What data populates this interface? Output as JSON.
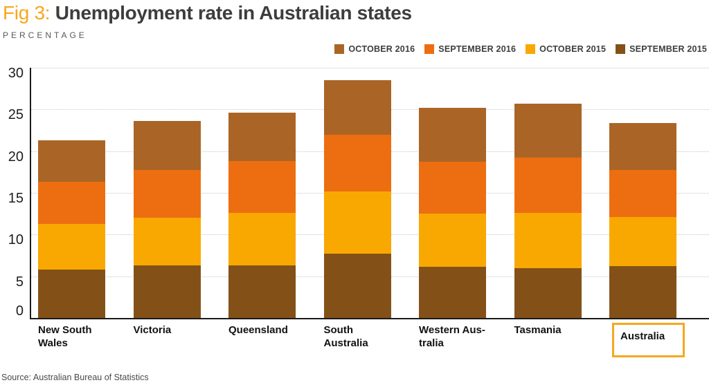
{
  "header": {
    "fig_label": "Fig 3:",
    "title": "Unemployment rate in Australian states",
    "subtitle": "PERCENTAGE"
  },
  "source_note": "Source: Australian Bureau of Statistics",
  "colors": {
    "accent_amber": "#F7A71E",
    "title_text": "#3D3D3C",
    "axis_line": "#1A1A1A",
    "gridline": "#C6C6C6",
    "tick_text": "#1D1D1B",
    "category_text": "#121212",
    "source_text": "#4A4A4A"
  },
  "chart_data": {
    "type": "bar",
    "stacked": true,
    "title": "Unemployment rate in Australian states",
    "ylabel": "PERCENTAGE",
    "xlabel": "",
    "ylim": [
      0,
      30
    ],
    "yticks": [
      0,
      5,
      10,
      15,
      20,
      25,
      30
    ],
    "grid": "horizontal dotted lines at every 5, on",
    "legend_position": "top-right",
    "stack_note": "bars stack bottom-to-top in reverse legend order: SEPTEMBER 2015 at bottom, OCTOBER 2016 on top",
    "categories": [
      "New South\nWales",
      "Victoria",
      "Queensland",
      "South\nAustralia",
      "Western Aus-\ntralia",
      "Tasmania",
      "Australia"
    ],
    "highlighted_category": "Australia",
    "series": [
      {
        "name": "OCTOBER 2016",
        "color": "#AA6526",
        "values": [
          5.0,
          5.9,
          5.8,
          6.5,
          6.5,
          6.5,
          5.7
        ]
      },
      {
        "name": "SEPTEMBER 2016",
        "color": "#ED6E10",
        "values": [
          5.0,
          5.7,
          6.2,
          6.8,
          6.2,
          6.6,
          5.6
        ]
      },
      {
        "name": "OCTOBER 2015",
        "color": "#F8A800",
        "values": [
          5.5,
          5.7,
          6.3,
          7.5,
          6.4,
          6.6,
          5.9
        ]
      },
      {
        "name": "SEPTEMBER 2015",
        "color": "#835118",
        "values": [
          5.8,
          6.3,
          6.3,
          7.7,
          6.1,
          6.0,
          6.2
        ]
      }
    ],
    "stacked_totals": [
      21.3,
      23.6,
      24.6,
      28.5,
      25.2,
      25.7,
      23.4
    ]
  }
}
